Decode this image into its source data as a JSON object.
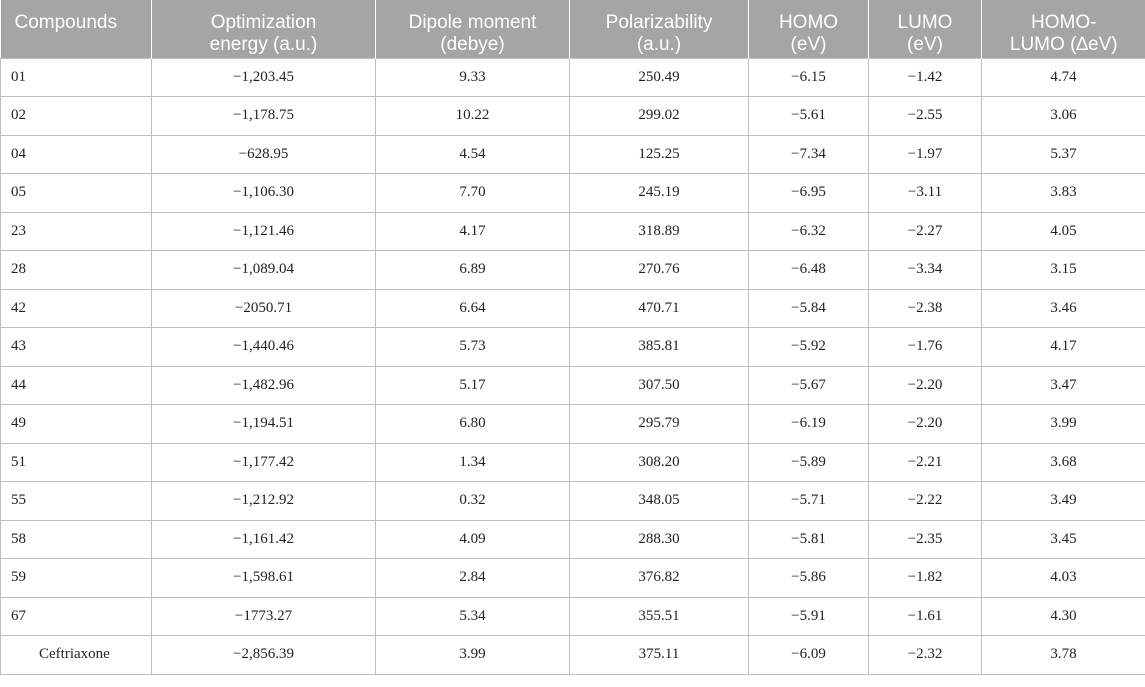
{
  "table": {
    "headers": [
      [
        "Compounds"
      ],
      [
        "Optimization",
        "energy (a.u.)"
      ],
      [
        "Dipole moment",
        "(debye)"
      ],
      [
        "Polarizability",
        "(a.u.)"
      ],
      [
        "HOMO",
        "(eV)"
      ],
      [
        "LUMO",
        "(eV)"
      ],
      [
        "HOMO-",
        "LUMO (∆eV)"
      ]
    ],
    "rows": [
      [
        "01",
        "−1,203.45",
        "9.33",
        "250.49",
        "−6.15",
        "−1.42",
        "4.74"
      ],
      [
        "02",
        "−1,178.75",
        "10.22",
        "299.02",
        "−5.61",
        "−2.55",
        "3.06"
      ],
      [
        "04",
        "−628.95",
        "4.54",
        "125.25",
        "−7.34",
        "−1.97",
        "5.37"
      ],
      [
        "05",
        "−1,106.30",
        "7.70",
        "245.19",
        "−6.95",
        "−3.11",
        "3.83"
      ],
      [
        "23",
        "−1,121.46",
        "4.17",
        "318.89",
        "−6.32",
        "−2.27",
        "4.05"
      ],
      [
        "28",
        "−1,089.04",
        "6.89",
        "270.76",
        "−6.48",
        "−3.34",
        "3.15"
      ],
      [
        "42",
        "−2050.71",
        "6.64",
        "470.71",
        "−5.84",
        "−2.38",
        "3.46"
      ],
      [
        "43",
        "−1,440.46",
        "5.73",
        "385.81",
        "−5.92",
        "−1.76",
        "4.17"
      ],
      [
        "44",
        "−1,482.96",
        "5.17",
        "307.50",
        "−5.67",
        "−2.20",
        "3.47"
      ],
      [
        "49",
        "−1,194.51",
        "6.80",
        "295.79",
        "−6.19",
        "−2.20",
        "3.99"
      ],
      [
        "51",
        "−1,177.42",
        "1.34",
        "308.20",
        "−5.89",
        "−2.21",
        "3.68"
      ],
      [
        "55",
        "−1,212.92",
        "0.32",
        "348.05",
        "−5.71",
        "−2.22",
        "3.49"
      ],
      [
        "58",
        "−1,161.42",
        "4.09",
        "288.30",
        "−5.81",
        "−2.35",
        "3.45"
      ],
      [
        "59",
        "−1,598.61",
        "2.84",
        "376.82",
        "−5.86",
        "−1.82",
        "4.03"
      ],
      [
        "67",
        "−1773.27",
        "5.34",
        "355.51",
        "−5.91",
        "−1.61",
        "4.30"
      ],
      [
        "Ceftriaxone",
        "−2,856.39",
        "3.99",
        "375.11",
        "−6.09",
        "−2.32",
        "3.78"
      ]
    ]
  }
}
